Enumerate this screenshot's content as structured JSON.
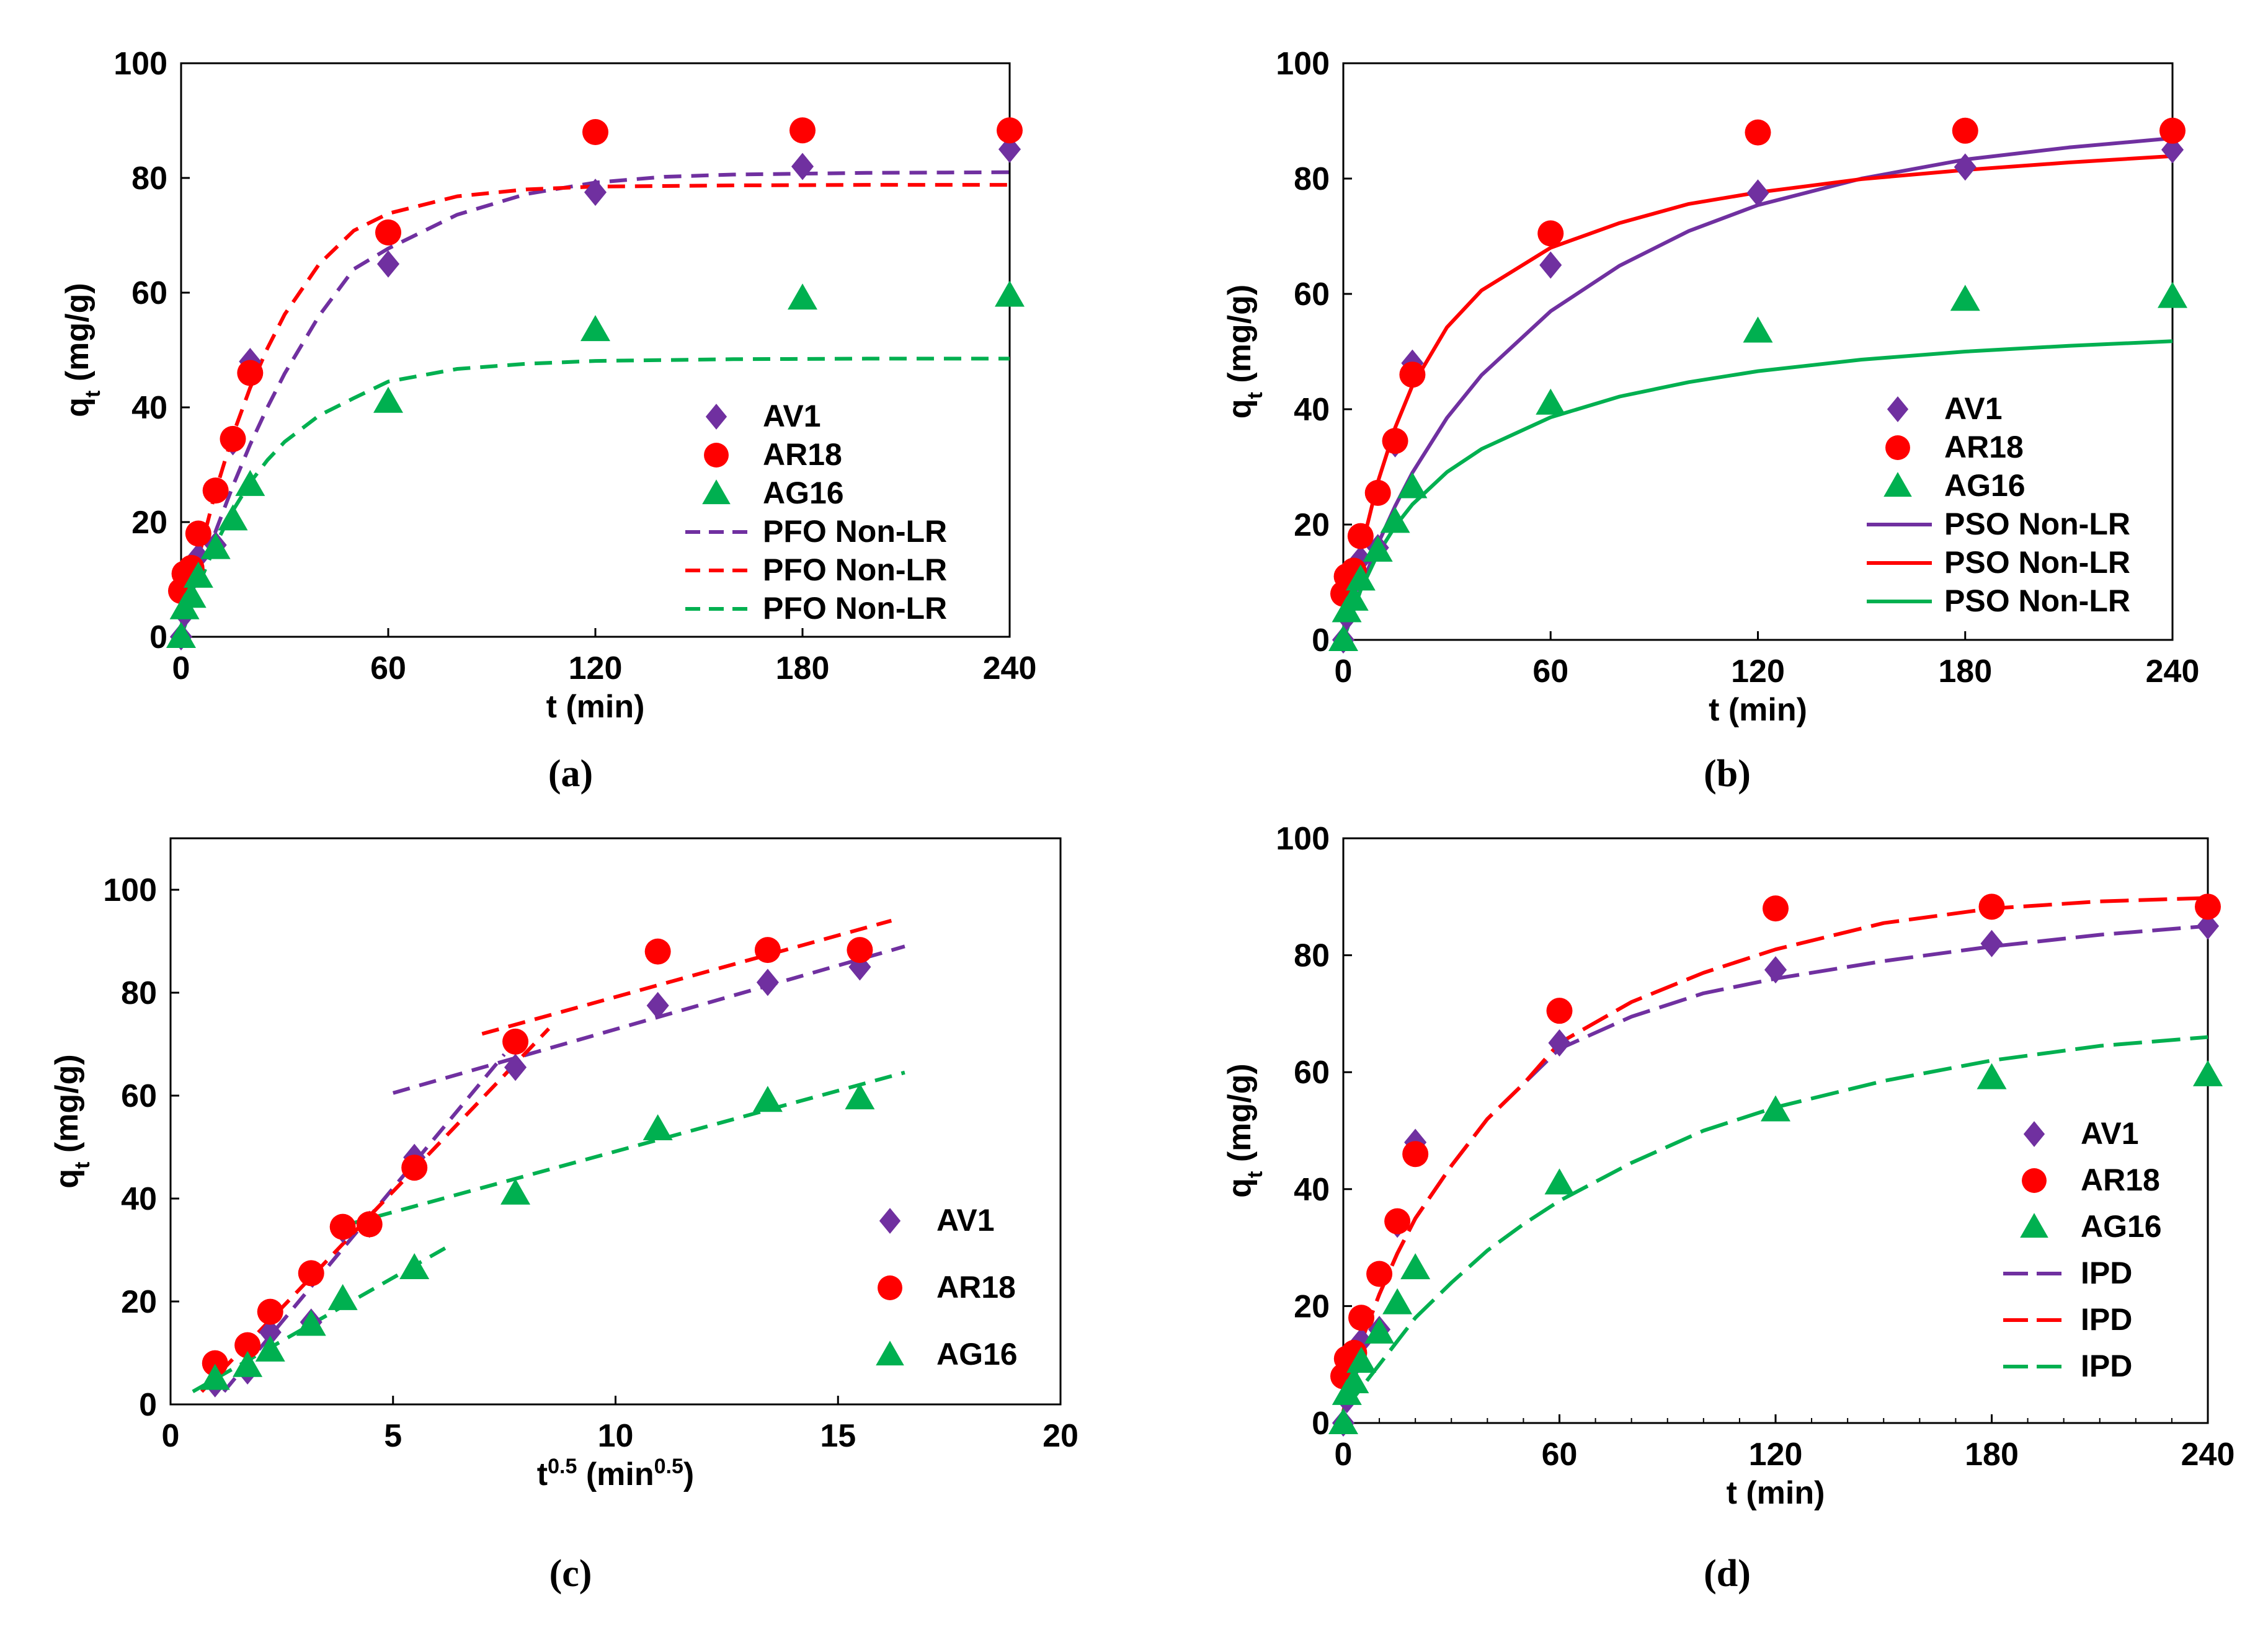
{
  "colors": {
    "av1": "#7030a0",
    "ar18": "#ff0000",
    "ag16": "#00b050"
  },
  "icons": {
    "av1": "diamond-marker-icon",
    "ar18": "circle-marker-icon",
    "ag16": "triangle-marker-icon"
  },
  "chart_data": [
    {
      "id": "a",
      "panel_label": "(a)",
      "type": "scatter",
      "xlabel": {
        "main": "t (min)"
      },
      "ylabel": {
        "main": "q",
        "sub": "t",
        "rest": " (mg/g)"
      },
      "xlim": [
        0,
        240
      ],
      "ylim": [
        0,
        100
      ],
      "xticks": [
        "0",
        "60",
        "120",
        "180",
        "240"
      ],
      "yticks": [
        "0",
        "20",
        "40",
        "60",
        "80",
        "100"
      ],
      "legend_position": "bottom-right",
      "series": [
        {
          "name": "AV1",
          "kind": "points",
          "marker": "diamond",
          "color": "#7030a0",
          "x": [
            0,
            1,
            3,
            5,
            10,
            15,
            20,
            60,
            120,
            180,
            240
          ],
          "y": [
            0,
            4,
            10,
            14,
            16,
            34,
            48,
            65,
            77.5,
            82,
            85
          ]
        },
        {
          "name": "AR18",
          "kind": "points",
          "marker": "circle",
          "color": "#ff0000",
          "x": [
            0,
            1,
            3,
            5,
            10,
            15,
            20,
            60,
            120,
            180,
            240
          ],
          "y": [
            8,
            11,
            12,
            18,
            25.5,
            34.5,
            46,
            70.5,
            88,
            88.3,
            88.3
          ]
        },
        {
          "name": "AG16",
          "kind": "points",
          "marker": "triangle",
          "color": "#00b050",
          "x": [
            0,
            1,
            3,
            5,
            10,
            15,
            20,
            60,
            120,
            180,
            240
          ],
          "y": [
            0,
            5,
            7,
            10.5,
            15.5,
            20.5,
            26.5,
            41,
            53.5,
            59,
            59.5
          ]
        },
        {
          "name": "PFO Non-LR",
          "kind": "curve",
          "dash": "dashed",
          "color": "#7030a0",
          "x": [
            0,
            5,
            10,
            15,
            20,
            25,
            30,
            40,
            50,
            60,
            80,
            100,
            120,
            140,
            160,
            200,
            240
          ],
          "y": [
            0,
            9.6,
            18.4,
            26.3,
            33.5,
            40.0,
            45.9,
            56.0,
            64.1,
            67.7,
            73.6,
            77.2,
            79.2,
            80.2,
            80.6,
            80.9,
            81.0
          ]
        },
        {
          "name": "PFO Non-LR",
          "kind": "curve",
          "dash": "dashed",
          "color": "#ff0000",
          "x": [
            0,
            5,
            10,
            15,
            20,
            25,
            30,
            40,
            50,
            60,
            80,
            100,
            120,
            160,
            200,
            240
          ],
          "y": [
            0,
            13.7,
            25.4,
            35.2,
            43.4,
            50.3,
            56.2,
            65.0,
            70.8,
            73.8,
            76.8,
            78.0,
            78.5,
            78.7,
            78.8,
            78.8
          ]
        },
        {
          "name": "PFO Non-LR",
          "kind": "curve",
          "dash": "dashed",
          "color": "#00b050",
          "x": [
            0,
            5,
            10,
            15,
            20,
            25,
            30,
            40,
            50,
            60,
            80,
            100,
            120,
            160,
            200,
            240
          ],
          "y": [
            0,
            8.9,
            16.1,
            22.0,
            26.9,
            30.8,
            34.0,
            38.6,
            41.6,
            44.5,
            46.7,
            47.6,
            48.1,
            48.4,
            48.5,
            48.5
          ]
        }
      ]
    },
    {
      "id": "b",
      "panel_label": "(b)",
      "type": "scatter",
      "xlabel": {
        "main": "t (min)"
      },
      "ylabel": {
        "main": "q",
        "sub": "t",
        "rest": " (mg/g)"
      },
      "xlim": [
        0,
        240
      ],
      "ylim": [
        0,
        100
      ],
      "xticks": [
        "0",
        "60",
        "120",
        "180",
        "240"
      ],
      "yticks": [
        "0",
        "20",
        "40",
        "60",
        "80",
        "100"
      ],
      "legend_position": "bottom-right",
      "series": [
        {
          "name": "AV1",
          "kind": "points",
          "marker": "diamond",
          "color": "#7030a0",
          "x": [
            0,
            1,
            3,
            5,
            10,
            15,
            20,
            60,
            120,
            180,
            240
          ],
          "y": [
            0,
            4,
            10,
            14,
            16,
            34,
            48,
            65,
            77.5,
            82,
            85
          ]
        },
        {
          "name": "AR18",
          "kind": "points",
          "marker": "circle",
          "color": "#ff0000",
          "x": [
            0,
            1,
            3,
            5,
            10,
            15,
            20,
            60,
            120,
            180,
            240
          ],
          "y": [
            8,
            11,
            12,
            18,
            25.5,
            34.5,
            46,
            70.5,
            88,
            88.3,
            88.3
          ]
        },
        {
          "name": "AG16",
          "kind": "points",
          "marker": "triangle",
          "color": "#00b050",
          "x": [
            0,
            1,
            3,
            5,
            10,
            15,
            20,
            60,
            120,
            180,
            240
          ],
          "y": [
            0,
            5,
            7,
            10.5,
            15.5,
            20.5,
            26.5,
            41,
            53.5,
            59,
            59.5
          ]
        },
        {
          "name": "PSO Non-LR",
          "kind": "curve",
          "dash": "solid",
          "color": "#7030a0",
          "x": [
            0,
            5,
            10,
            15,
            20,
            30,
            40,
            60,
            80,
            100,
            120,
            150,
            180,
            210,
            240
          ],
          "y": [
            0,
            8.9,
            16.6,
            23.2,
            29.0,
            38.5,
            45.9,
            57.0,
            64.9,
            70.9,
            75.4,
            80.0,
            83.3,
            85.4,
            87.0
          ]
        },
        {
          "name": "PSO Non-LR",
          "kind": "curve",
          "dash": "solid",
          "color": "#ff0000",
          "x": [
            0,
            5,
            10,
            15,
            20,
            30,
            40,
            60,
            80,
            100,
            120,
            150,
            180,
            210,
            240
          ],
          "y": [
            0,
            15.2,
            27.4,
            36.8,
            44.1,
            54.2,
            60.6,
            68.0,
            72.3,
            75.6,
            77.6,
            79.9,
            81.5,
            82.8,
            83.9
          ]
        },
        {
          "name": "PSO Non-LR",
          "kind": "curve",
          "dash": "solid",
          "color": "#00b050",
          "x": [
            0,
            5,
            10,
            15,
            20,
            30,
            40,
            60,
            80,
            100,
            120,
            150,
            180,
            210,
            240
          ],
          "y": [
            0,
            8.6,
            14.9,
            19.7,
            23.5,
            29.1,
            33.1,
            38.6,
            42.2,
            44.7,
            46.6,
            48.6,
            50.0,
            51.0,
            51.8
          ]
        }
      ]
    },
    {
      "id": "c",
      "panel_label": "(c)",
      "type": "scatter",
      "xlabel": {
        "main": "t",
        "sup": "0.5",
        "rest": " (min",
        "sup2": "0.5",
        "end": ")"
      },
      "ylabel": {
        "main": "q",
        "sub": "t",
        "rest": " (mg/g)"
      },
      "xlim": [
        0,
        20
      ],
      "ylim": [
        0,
        110
      ],
      "xticks": [
        "0",
        "5",
        "10",
        "15",
        "20"
      ],
      "yticks": [
        "0",
        "20",
        "40",
        "60",
        "80",
        "100"
      ],
      "ytick_values": [
        0,
        20,
        40,
        60,
        80,
        100
      ],
      "legend_position": "right-middle",
      "series": [
        {
          "name": "AV1",
          "kind": "points",
          "marker": "diamond",
          "color": "#7030a0",
          "x": [
            1.0,
            1.73,
            2.24,
            3.16,
            3.87,
            4.47,
            5.48,
            7.75,
            10.95,
            13.42,
            15.49
          ],
          "y": [
            4,
            6.5,
            14,
            16,
            34,
            35,
            48,
            65.5,
            77.5,
            82,
            85
          ]
        },
        {
          "name": "AR18",
          "kind": "points",
          "marker": "circle",
          "color": "#ff0000",
          "x": [
            1.0,
            1.73,
            2.24,
            3.16,
            3.87,
            4.47,
            5.48,
            7.75,
            10.95,
            13.42,
            15.49
          ],
          "y": [
            8,
            11.5,
            18,
            25.5,
            34.5,
            35,
            46,
            70.5,
            88,
            88.3,
            88.3
          ]
        },
        {
          "name": "AG16",
          "kind": "points",
          "marker": "triangle",
          "color": "#00b050",
          "x": [
            1.0,
            1.73,
            2.24,
            3.16,
            3.87,
            5.48,
            7.75,
            10.95,
            13.42,
            15.49
          ],
          "y": [
            5,
            7.5,
            10.5,
            15.5,
            20.5,
            26.5,
            41,
            53.5,
            59,
            59.5
          ]
        },
        {
          "name": "AV1 fit 1",
          "kind": "curve",
          "dash": "dashed",
          "color": "#7030a0",
          "x": [
            1.2,
            7.5
          ],
          "y": [
            2.5,
            68
          ]
        },
        {
          "name": "AV1 fit 2",
          "kind": "curve",
          "dash": "dashed",
          "color": "#7030a0",
          "x": [
            5.0,
            16.5
          ],
          "y": [
            60.5,
            89
          ]
        },
        {
          "name": "AR18 fit 1",
          "kind": "curve",
          "dash": "dashed",
          "color": "#ff0000",
          "x": [
            0.7,
            8.5
          ],
          "y": [
            2.5,
            73
          ]
        },
        {
          "name": "AR18 fit 2",
          "kind": "curve",
          "dash": "dashed",
          "color": "#ff0000",
          "x": [
            7.0,
            16.2
          ],
          "y": [
            72,
            94
          ]
        },
        {
          "name": "AG16 fit 1",
          "kind": "curve",
          "dash": "dashed",
          "color": "#00b050",
          "x": [
            0.5,
            6.3
          ],
          "y": [
            2.5,
            31
          ]
        },
        {
          "name": "AG16 fit 2",
          "kind": "curve",
          "dash": "dashed",
          "color": "#00b050",
          "x": [
            4.0,
            16.5
          ],
          "y": [
            35,
            64.5
          ]
        }
      ]
    },
    {
      "id": "d",
      "panel_label": "(d)",
      "type": "scatter",
      "xlabel": {
        "main": "t (min)"
      },
      "ylabel": {
        "main": "q",
        "sub": "t",
        "rest": " (mg/g)"
      },
      "xlim": [
        0,
        240
      ],
      "ylim": [
        0,
        100
      ],
      "xticks": [
        "0",
        "60",
        "120",
        "180",
        "240"
      ],
      "yticks": [
        "0",
        "20",
        "40",
        "60",
        "80",
        "100"
      ],
      "legend_position": "bottom-right",
      "series": [
        {
          "name": "AV1",
          "kind": "points",
          "marker": "diamond",
          "color": "#7030a0",
          "x": [
            0,
            1,
            3,
            5,
            10,
            15,
            20,
            60,
            120,
            180,
            240
          ],
          "y": [
            0,
            4,
            10,
            14,
            16,
            34,
            48,
            65,
            77.5,
            82,
            85
          ]
        },
        {
          "name": "AR18",
          "kind": "points",
          "marker": "circle",
          "color": "#ff0000",
          "x": [
            0,
            1,
            3,
            5,
            10,
            15,
            20,
            60,
            120,
            180,
            240
          ],
          "y": [
            8,
            11,
            12,
            18,
            25.5,
            34.5,
            46,
            70.5,
            88,
            88.3,
            88.3
          ]
        },
        {
          "name": "AG16",
          "kind": "points",
          "marker": "triangle",
          "color": "#00b050",
          "x": [
            0,
            1,
            3,
            5,
            10,
            15,
            20,
            60,
            120,
            180,
            240
          ],
          "y": [
            0,
            5,
            7,
            10.5,
            15.5,
            20.5,
            26.5,
            41,
            53.5,
            59,
            59.5
          ]
        },
        {
          "name": "IPD",
          "kind": "curve",
          "dash": "longdash",
          "color": "#7030a0",
          "x": [
            0,
            5,
            10,
            15,
            20,
            30,
            40,
            50,
            60,
            80,
            100,
            120,
            150,
            180,
            210,
            240
          ],
          "y": [
            2,
            14,
            22,
            29,
            35,
            44,
            52,
            58,
            64,
            69.5,
            73.5,
            76,
            79,
            81.5,
            83.5,
            85
          ]
        },
        {
          "name": "IPD",
          "kind": "curve",
          "dash": "longdash",
          "color": "#ff0000",
          "x": [
            0,
            5,
            10,
            15,
            20,
            30,
            40,
            50,
            60,
            80,
            100,
            120,
            150,
            180,
            210,
            240
          ],
          "y": [
            2,
            14,
            22,
            29,
            35,
            44,
            52,
            58,
            65,
            72,
            77,
            81,
            85.5,
            88,
            89.2,
            89.8
          ]
        },
        {
          "name": "IPD",
          "kind": "curve",
          "dash": "longdash",
          "color": "#00b050",
          "x": [
            0,
            5,
            10,
            15,
            20,
            30,
            40,
            50,
            60,
            80,
            100,
            120,
            150,
            180,
            210,
            240
          ],
          "y": [
            2,
            6,
            10,
            14,
            18,
            24,
            29.5,
            34,
            38,
            44.5,
            50,
            54,
            58.5,
            62,
            64.5,
            66
          ]
        }
      ]
    }
  ]
}
